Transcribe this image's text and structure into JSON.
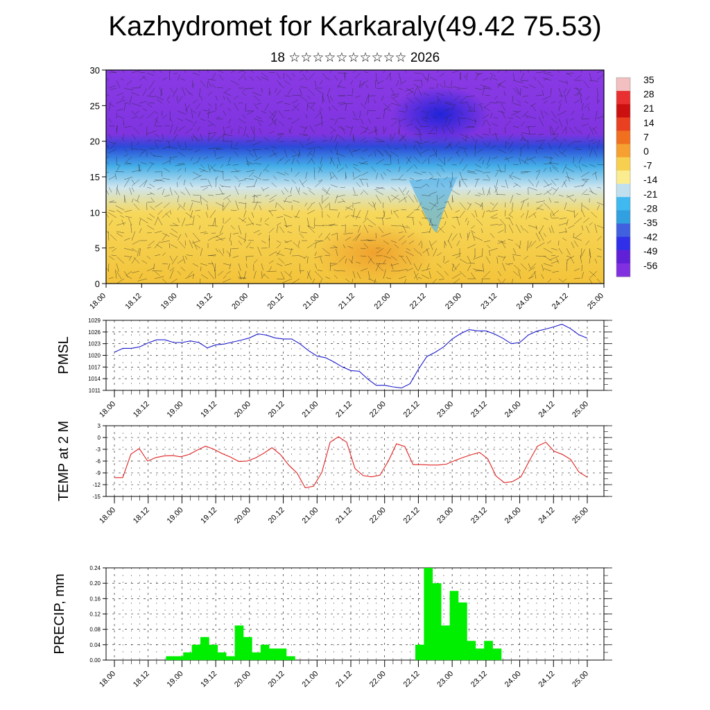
{
  "header": {
    "title": "Kazhydromet for Karkaraly(49.42 75.53)",
    "subtitle": "18 ☆☆☆☆☆☆☆☆☆☆ 2026"
  },
  "chart_data": [
    {
      "type": "heatmap",
      "name": "cross-section",
      "description_field": "temperature cross-section with wind vectors",
      "ylim": [
        0,
        30
      ],
      "yticks": [
        0,
        5,
        10,
        15,
        20,
        25,
        30
      ],
      "xtick_labels": [
        "18.00",
        "18.12",
        "19.00",
        "19.12",
        "20.00",
        "20.12",
        "21.00",
        "21.12",
        "22.00",
        "22.12",
        "23.00",
        "23.12",
        "24.00",
        "24.12",
        "25.00"
      ],
      "colorbar": {
        "labels": [
          "35",
          "28",
          "21",
          "14",
          "7",
          "0",
          "-7",
          "-14",
          "-21",
          "-28",
          "-35",
          "-42",
          "-49",
          "-56"
        ],
        "colors": [
          "#f2c0c0",
          "#e83030",
          "#cc1010",
          "#e84020",
          "#f07020",
          "#f5a030",
          "#f8d050",
          "#fbec90",
          "#c0e0f0",
          "#40b8f0",
          "#30a0e0",
          "#4060e0",
          "#3030e8",
          "#6020d8",
          "#8030e0"
        ]
      }
    },
    {
      "type": "line",
      "name": "pmsl",
      "ylabel": "PMSL",
      "ylim": [
        1011,
        1029
      ],
      "yticks": [
        1011,
        1014,
        1017,
        1020,
        1023,
        1026,
        1029
      ],
      "color": "#1a1acc",
      "xtick_labels": [
        "18.00",
        "18.12",
        "19.00",
        "19.12",
        "20.00",
        "20.12",
        "21.00",
        "21.12",
        "22.00",
        "22.12",
        "23.00",
        "23.12",
        "24.00",
        "24.12",
        "25.00"
      ],
      "values": [
        1020.8,
        1021.8,
        1021.8,
        1022.2,
        1023.2,
        1024.0,
        1024.0,
        1023.3,
        1023.3,
        1023.7,
        1023.3,
        1021.9,
        1022.7,
        1022.9,
        1023.4,
        1023.9,
        1024.5,
        1025.5,
        1025.2,
        1024.5,
        1024.2,
        1024.2,
        1022.9,
        1021.2,
        1019.8,
        1019.4,
        1018.3,
        1017.0,
        1016.1,
        1015.9,
        1013.9,
        1012.3,
        1012.3,
        1011.9,
        1011.6,
        1012.7,
        1016.4,
        1019.7,
        1020.8,
        1022.2,
        1024.2,
        1025.6,
        1026.6,
        1026.3,
        1026.3,
        1025.5,
        1024.4,
        1023.0,
        1023.3,
        1025.2,
        1026.2,
        1026.7,
        1027.3,
        1028.0,
        1026.9,
        1025.3,
        1024.4
      ]
    },
    {
      "type": "line",
      "name": "temp-2m",
      "ylabel": "TEMP at 2 M",
      "ylim": [
        -15,
        3
      ],
      "yticks": [
        -15,
        -12,
        -9,
        -6,
        -3,
        0,
        3
      ],
      "color": "#e02020",
      "xtick_labels": [
        "18.00",
        "18.12",
        "19.00",
        "19.12",
        "20.00",
        "20.12",
        "21.00",
        "21.12",
        "22.00",
        "22.12",
        "23.00",
        "23.12",
        "24.00",
        "24.12",
        "25.00"
      ],
      "values": [
        -10.2,
        -10.2,
        -4.2,
        -2.8,
        -6.0,
        -5.1,
        -4.7,
        -4.6,
        -4.9,
        -4.3,
        -3.2,
        -2.2,
        -3.0,
        -4.1,
        -5.0,
        -6.1,
        -6.0,
        -5.2,
        -4.0,
        -2.6,
        -4.3,
        -7.0,
        -9.0,
        -12.8,
        -12.4,
        -8.9,
        -1.2,
        0.2,
        -1.2,
        -7.9,
        -9.7,
        -10.0,
        -9.6,
        -6.1,
        -1.6,
        -2.3,
        -6.9,
        -6.9,
        -7.0,
        -7.0,
        -6.8,
        -5.9,
        -5.1,
        -4.4,
        -3.8,
        -5.4,
        -9.8,
        -11.5,
        -11.2,
        -10.0,
        -6.0,
        -2.2,
        -1.2,
        -3.5,
        -4.3,
        -5.6,
        -8.8,
        -10.1
      ]
    },
    {
      "type": "bar",
      "name": "precip",
      "ylabel": "PRECIP, mm",
      "ylim": [
        0,
        0.24
      ],
      "yticks": [
        "0.00",
        "0.04",
        "0.08",
        "0.12",
        "0.16",
        "0.20",
        "0.24"
      ],
      "color": "#00ee00",
      "xtick_labels": [
        "18.00",
        "18.12",
        "19.00",
        "19.12",
        "20.00",
        "20.12",
        "21.00",
        "21.12",
        "22.00",
        "22.12",
        "23.00",
        "23.12",
        "24.00",
        "24.12",
        "25.00"
      ],
      "values": [
        0,
        0,
        0,
        0,
        0,
        0,
        0.01,
        0.01,
        0.02,
        0.04,
        0.06,
        0.04,
        0.02,
        0.01,
        0.09,
        0.06,
        0.02,
        0.04,
        0.03,
        0.03,
        0.01,
        0,
        0,
        0,
        0,
        0,
        0,
        0,
        0,
        0,
        0,
        0,
        0,
        0,
        0,
        0.04,
        0.24,
        0.2,
        0.09,
        0.18,
        0.15,
        0.05,
        0.03,
        0.05,
        0.03,
        0,
        0,
        0,
        0,
        0,
        0,
        0,
        0,
        0,
        0,
        0
      ]
    }
  ]
}
